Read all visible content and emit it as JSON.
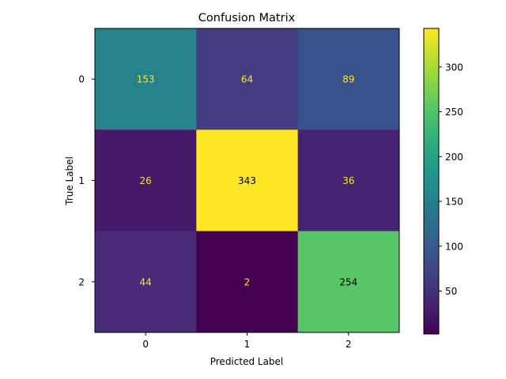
{
  "chart_data": {
    "type": "heatmap",
    "title": "Confusion Matrix",
    "xlabel": "Predicted Label",
    "ylabel": "True Label",
    "x_categories": [
      "0",
      "1",
      "2"
    ],
    "y_categories": [
      "0",
      "1",
      "2"
    ],
    "values": [
      [
        153,
        64,
        89
      ],
      [
        26,
        343,
        36
      ],
      [
        44,
        2,
        254
      ]
    ],
    "colormap": "viridis",
    "color_range": [
      2,
      343
    ],
    "colorbar_ticks": [
      50,
      100,
      150,
      200,
      250,
      300
    ],
    "text_color_light": "#fde725",
    "text_color_dark": "#000000",
    "grid": false
  }
}
